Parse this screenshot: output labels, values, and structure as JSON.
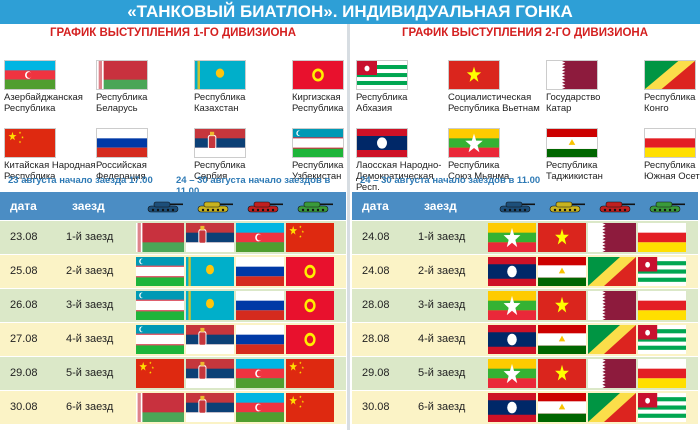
{
  "banner": "«ТАНКОВЫЙ БИАТЛОН». ИНДИВИДУАЛЬНАЯ ГОНКА",
  "left": {
    "subtitle": "ГРАФИК ВЫСТУПЛЕНИЯ 1-ГО ДИВИЗИОНА",
    "countries": [
      {
        "flag": "azerbaijan",
        "name": "Азербайджанская\nРеспублика"
      },
      {
        "flag": "belarus",
        "name": "Республика\nБеларусь"
      },
      {
        "flag": "kazakhstan",
        "name": "Республика\nКазахстан"
      },
      {
        "flag": "kyrgyzstan",
        "name": "Киргизская\nРеспублика"
      },
      {
        "flag": "china",
        "name": "Китайская Народная\nРеспублика"
      },
      {
        "flag": "russia",
        "name": "Российская\nФедерация"
      },
      {
        "flag": "serbia",
        "name": "Республика\nСербия"
      },
      {
        "flag": "uzbekistan",
        "name": "Республика\nУзбекистан"
      }
    ],
    "date_note1": "23 августа начало заезда 17.00",
    "date_note2": "24 – 30 августа начало заездов в 11.00",
    "head": {
      "date": "дата",
      "stage": "заезд"
    },
    "tanks": [
      "#1d4f7a",
      "#c8b420",
      "#c02020",
      "#3a9a3a"
    ],
    "rows": [
      {
        "date": "23.08",
        "stage": "1-й заезд",
        "flags": [
          "belarus",
          "serbia",
          "azerbaijan",
          "china"
        ]
      },
      {
        "date": "25.08",
        "stage": "2-й заезд",
        "flags": [
          "uzbekistan",
          "kazakhstan",
          "russia",
          "kyrgyzstan"
        ]
      },
      {
        "date": "26.08",
        "stage": "3-й заезд",
        "flags": [
          "uzbekistan",
          "kazakhstan",
          "russia",
          "kyrgyzstan"
        ]
      },
      {
        "date": "27.08",
        "stage": "4-й заезд",
        "flags": [
          "uzbekistan",
          "serbia",
          "russia",
          "kyrgyzstan"
        ]
      },
      {
        "date": "29.08",
        "stage": "5-й заезд",
        "flags": [
          "china",
          "serbia",
          "azerbaijan",
          "china"
        ]
      },
      {
        "date": "30.08",
        "stage": "6-й заезд",
        "flags": [
          "belarus",
          "serbia",
          "azerbaijan",
          "china"
        ]
      }
    ]
  },
  "right": {
    "subtitle": "ГРАФИК ВЫСТУПЛЕНИЯ 2-ГО ДИВИЗИОНА",
    "countries": [
      {
        "flag": "abkhazia",
        "name": "Республика\nАбхазия"
      },
      {
        "flag": "vietnam",
        "name": "Социалистическая\nРеспублика Вьетнам"
      },
      {
        "flag": "qatar",
        "name": "Государство\nКатар"
      },
      {
        "flag": "congo",
        "name": "Республика\nКонго"
      },
      {
        "flag": "laos",
        "name": "Лаосская Народно-\nДемократическая Респ."
      },
      {
        "flag": "myanmar",
        "name": "Республика\nСоюз Мьянма"
      },
      {
        "flag": "tajikistan",
        "name": "Республика\nТаджикистан"
      },
      {
        "flag": "southossetia",
        "name": "Республика\nЮжная Осетия"
      }
    ],
    "date_note1": "24 – 30 августа начало заездов в 11.00",
    "head": {
      "date": "дата",
      "stage": "заезд"
    },
    "tanks": [
      "#1d4f7a",
      "#c8b420",
      "#c02020",
      "#3a9a3a"
    ],
    "rows": [
      {
        "date": "24.08",
        "stage": "1-й заезд",
        "flags": [
          "myanmar",
          "vietnam",
          "qatar",
          "southossetia"
        ]
      },
      {
        "date": "24.08",
        "stage": "2-й заезд",
        "flags": [
          "laos",
          "tajikistan",
          "congo",
          "abkhazia"
        ]
      },
      {
        "date": "28.08",
        "stage": "3-й заезд",
        "flags": [
          "myanmar",
          "vietnam",
          "qatar",
          "southossetia"
        ]
      },
      {
        "date": "28.08",
        "stage": "4-й заезд",
        "flags": [
          "laos",
          "tajikistan",
          "congo",
          "abkhazia"
        ]
      },
      {
        "date": "29.08",
        "stage": "5-й заезд",
        "flags": [
          "myanmar",
          "vietnam",
          "qatar",
          "southossetia"
        ]
      },
      {
        "date": "30.08",
        "stage": "6-й заезд",
        "flags": [
          "laos",
          "tajikistan",
          "congo",
          "abkhazia"
        ]
      }
    ]
  }
}
